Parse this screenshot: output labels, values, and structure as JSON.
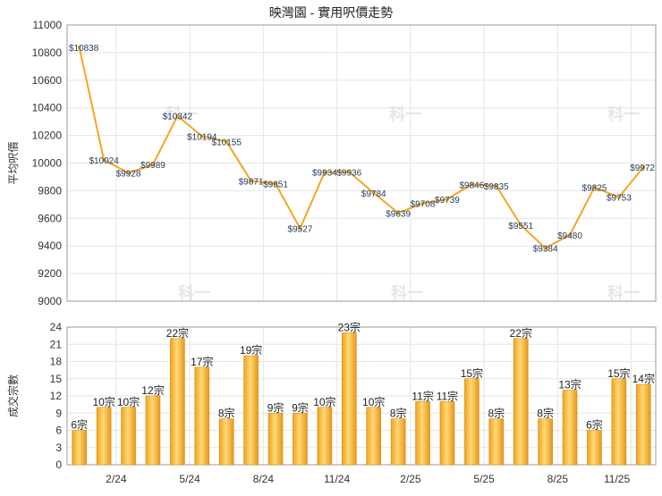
{
  "chart_data": [
    {
      "type": "line",
      "title": "映灣園 - 實用呎價走勢",
      "ylabel": "平均呎價",
      "ylim": [
        9000,
        11000
      ],
      "yticks": [
        9000,
        9200,
        9400,
        9600,
        9800,
        10000,
        10200,
        10400,
        10600,
        10800,
        11000
      ],
      "grid": true,
      "series": [
        {
          "color": "#f5a623",
          "values": [
            10838,
            10024,
            9928,
            9989,
            10342,
            10194,
            10155,
            9871,
            9851,
            9527,
            9934,
            9936,
            9784,
            9639,
            9708,
            9739,
            9846,
            9835,
            9551,
            9384,
            9480,
            9825,
            9753,
            9972
          ],
          "labels": [
            "$10838",
            "$10024",
            "$9928",
            "$9989",
            "$10342",
            "$10194",
            "$10155",
            "$9871",
            "$9851",
            "$9527",
            "$9934",
            "$9936",
            "$9784",
            "$9639",
            "$9708",
            "$9739",
            "$9846",
            "$9835",
            "$9551",
            "$9384",
            "$9480",
            "$9825",
            "$9753",
            "$9972"
          ]
        }
      ]
    },
    {
      "type": "bar",
      "ylabel": "成交宗數",
      "ylim": [
        0,
        24
      ],
      "yticks": [
        0,
        3,
        6,
        9,
        12,
        15,
        18,
        21,
        24
      ],
      "grid": true,
      "xtick_labels": [
        "2/24",
        "5/24",
        "8/24",
        "11/24",
        "2/25",
        "5/25",
        "8/25",
        "11/25"
      ],
      "series": [
        {
          "color": "#f5a623",
          "values": [
            6,
            10,
            10,
            12,
            22,
            17,
            8,
            19,
            9,
            9,
            10,
            23,
            10,
            8,
            11,
            11,
            15,
            8,
            22,
            8,
            13,
            6,
            15,
            14
          ],
          "labels": [
            "6宗",
            "10宗",
            "10宗",
            "12宗",
            "22宗",
            "17宗",
            "8宗",
            "19宗",
            "9宗",
            "9宗",
            "10宗",
            "23宗",
            "10宗",
            "8宗",
            "11宗",
            "11宗",
            "15宗",
            "8宗",
            "22宗",
            "8宗",
            "13宗",
            "6宗",
            "15宗",
            "14宗"
          ]
        }
      ]
    }
  ],
  "watermark": "科一"
}
